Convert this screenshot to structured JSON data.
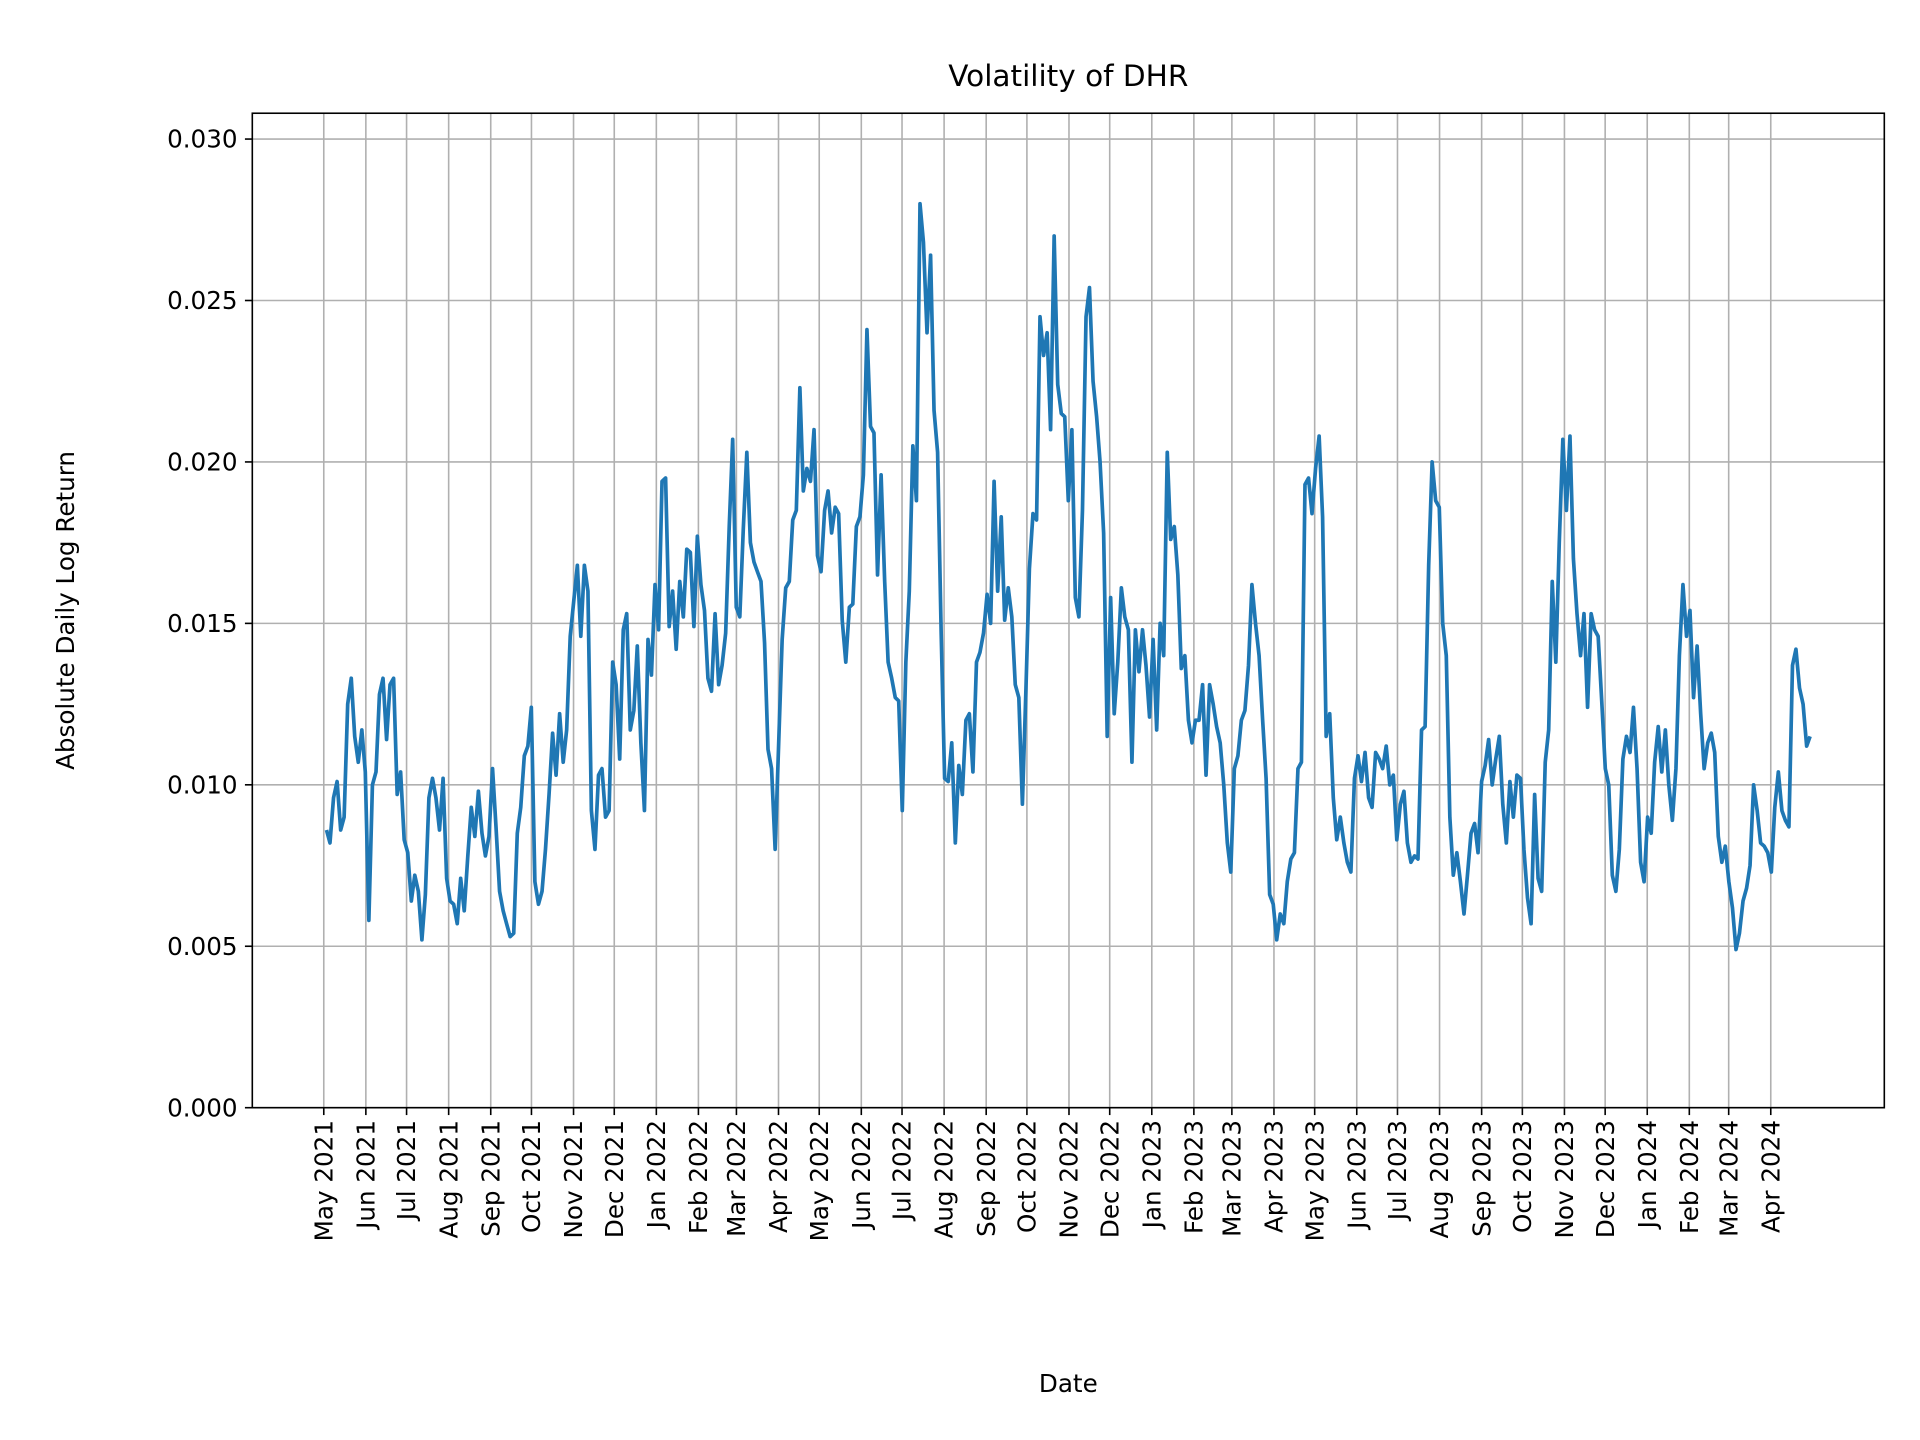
{
  "chart_data": {
    "type": "line",
    "title": "Volatility of DHR",
    "xlabel": "Date",
    "ylabel": "Absolute Daily Log Return",
    "ylim": [
      0,
      0.0308
    ],
    "yticks": [
      0.0,
      0.005,
      0.01,
      0.015,
      0.02,
      0.025,
      0.03
    ],
    "ytick_labels": [
      "0.000",
      "0.005",
      "0.010",
      "0.015",
      "0.020",
      "0.025",
      "0.030"
    ],
    "xticks": [
      "2021-05-01",
      "2021-06-01",
      "2021-07-01",
      "2021-08-01",
      "2021-09-01",
      "2021-10-01",
      "2021-11-01",
      "2021-12-01",
      "2022-01-01",
      "2022-02-01",
      "2022-03-01",
      "2022-04-01",
      "2022-05-01",
      "2022-06-01",
      "2022-07-01",
      "2022-08-01",
      "2022-09-01",
      "2022-10-01",
      "2022-11-01",
      "2022-12-01",
      "2023-01-01",
      "2023-02-01",
      "2023-03-01",
      "2023-04-01",
      "2023-05-01",
      "2023-06-01",
      "2023-07-01",
      "2023-08-01",
      "2023-09-01",
      "2023-10-01",
      "2023-11-01",
      "2023-12-01",
      "2024-01-01",
      "2024-02-01",
      "2024-03-01",
      "2024-04-01"
    ],
    "xtick_labels": [
      "May 2021",
      "Jun 2021",
      "Jul 2021",
      "Aug 2021",
      "Sep 2021",
      "Oct 2021",
      "Nov 2021",
      "Dec 2021",
      "Jan 2022",
      "Feb 2022",
      "Mar 2022",
      "Apr 2022",
      "May 2022",
      "Jun 2022",
      "Jul 2022",
      "Aug 2022",
      "Sep 2022",
      "Oct 2022",
      "Nov 2022",
      "Dec 2022",
      "Jan 2023",
      "Feb 2023",
      "Mar 2023",
      "Apr 2023",
      "May 2023",
      "Jun 2023",
      "Jul 2023",
      "Aug 2023",
      "Sep 2023",
      "Oct 2023",
      "Nov 2023",
      "Dec 2023",
      "Jan 2024",
      "Feb 2024",
      "Mar 2024",
      "Apr 2024"
    ],
    "grid": true,
    "line_color": "#1f77b4",
    "x_range": [
      "2021-05-03",
      "2024-04-30"
    ],
    "values": [
      0.0086,
      0.0082,
      0.0096,
      0.0101,
      0.0086,
      0.009,
      0.0125,
      0.0133,
      0.0115,
      0.0107,
      0.0117,
      0.0104,
      0.0058,
      0.01,
      0.0104,
      0.0128,
      0.0133,
      0.0114,
      0.0131,
      0.0133,
      0.0097,
      0.0104,
      0.0083,
      0.0079,
      0.0064,
      0.0072,
      0.0067,
      0.0052,
      0.0066,
      0.0096,
      0.0102,
      0.0096,
      0.0086,
      0.0102,
      0.0071,
      0.0064,
      0.0063,
      0.0057,
      0.0071,
      0.0061,
      0.0078,
      0.0093,
      0.0084,
      0.0098,
      0.0085,
      0.0078,
      0.0084,
      0.0105,
      0.0087,
      0.0067,
      0.0061,
      0.0057,
      0.0053,
      0.0054,
      0.0085,
      0.0093,
      0.0109,
      0.0112,
      0.0124,
      0.007,
      0.0063,
      0.0067,
      0.008,
      0.0097,
      0.0116,
      0.0103,
      0.0122,
      0.0107,
      0.0117,
      0.0146,
      0.0157,
      0.0168,
      0.0146,
      0.0168,
      0.016,
      0.0092,
      0.008,
      0.0103,
      0.0105,
      0.009,
      0.0092,
      0.0138,
      0.0131,
      0.0108,
      0.0148,
      0.0153,
      0.0117,
      0.0123,
      0.0143,
      0.0113,
      0.0092,
      0.0145,
      0.0134,
      0.0162,
      0.0148,
      0.0194,
      0.0195,
      0.0149,
      0.016,
      0.0142,
      0.0163,
      0.0152,
      0.0173,
      0.0172,
      0.0149,
      0.0177,
      0.0162,
      0.0154,
      0.0133,
      0.0129,
      0.0153,
      0.0131,
      0.0137,
      0.0147,
      0.018,
      0.0207,
      0.0155,
      0.0152,
      0.0179,
      0.0203,
      0.0175,
      0.0169,
      0.0166,
      0.0163,
      0.0144,
      0.0111,
      0.0105,
      0.008,
      0.0112,
      0.0145,
      0.0161,
      0.0163,
      0.0182,
      0.0185,
      0.0223,
      0.0191,
      0.0198,
      0.0194,
      0.021,
      0.0171,
      0.0166,
      0.0185,
      0.0191,
      0.0178,
      0.0186,
      0.0184,
      0.0151,
      0.0138,
      0.0155,
      0.0156,
      0.018,
      0.0183,
      0.0196,
      0.0241,
      0.0211,
      0.0209,
      0.0165,
      0.0196,
      0.0163,
      0.0138,
      0.0133,
      0.0127,
      0.0126,
      0.0092,
      0.0138,
      0.016,
      0.0205,
      0.0188,
      0.028,
      0.0268,
      0.024,
      0.0264,
      0.0216,
      0.0203,
      0.0147,
      0.0102,
      0.0101,
      0.0113,
      0.0082,
      0.0106,
      0.0097,
      0.012,
      0.0122,
      0.0104,
      0.0138,
      0.0141,
      0.0147,
      0.0159,
      0.015,
      0.0194,
      0.016,
      0.0183,
      0.0151,
      0.0161,
      0.0152,
      0.0131,
      0.0127,
      0.0094,
      0.013,
      0.0167,
      0.0184,
      0.0182,
      0.0245,
      0.0233,
      0.024,
      0.021,
      0.027,
      0.0224,
      0.0215,
      0.0214,
      0.0188,
      0.021,
      0.0158,
      0.0152,
      0.0185,
      0.0245,
      0.0254,
      0.0225,
      0.0214,
      0.02,
      0.0178,
      0.0115,
      0.0158,
      0.0122,
      0.0138,
      0.0161,
      0.0152,
      0.0148,
      0.0107,
      0.0148,
      0.0135,
      0.0148,
      0.0137,
      0.0121,
      0.0145,
      0.0117,
      0.015,
      0.014,
      0.0203,
      0.0176,
      0.018,
      0.0165,
      0.0136,
      0.014,
      0.012,
      0.0113,
      0.012,
      0.012,
      0.0131,
      0.0103,
      0.0131,
      0.0125,
      0.0118,
      0.0113,
      0.01,
      0.0082,
      0.0073,
      0.0105,
      0.0109,
      0.012,
      0.0123,
      0.0137,
      0.0162,
      0.015,
      0.014,
      0.012,
      0.0102,
      0.0066,
      0.0063,
      0.0052,
      0.006,
      0.0057,
      0.007,
      0.0077,
      0.0079,
      0.0105,
      0.0107,
      0.0193,
      0.0195,
      0.0184,
      0.0198,
      0.0208,
      0.0183,
      0.0115,
      0.0122,
      0.0096,
      0.0083,
      0.009,
      0.0082,
      0.0076,
      0.0073,
      0.0102,
      0.0109,
      0.0101,
      0.011,
      0.0096,
      0.0093,
      0.011,
      0.0108,
      0.0105,
      0.0112,
      0.01,
      0.0103,
      0.0083,
      0.0094,
      0.0098,
      0.0082,
      0.0076,
      0.0078,
      0.0077,
      0.0117,
      0.0118,
      0.0168,
      0.02,
      0.0188,
      0.0186,
      0.015,
      0.014,
      0.009,
      0.0072,
      0.0079,
      0.007,
      0.006,
      0.0072,
      0.0085,
      0.0088,
      0.0079,
      0.0101,
      0.0106,
      0.0114,
      0.01,
      0.0108,
      0.0115,
      0.0094,
      0.0082,
      0.0101,
      0.009,
      0.0103,
      0.0102,
      0.008,
      0.0065,
      0.0057,
      0.0097,
      0.0071,
      0.0067,
      0.0107,
      0.0117,
      0.0163,
      0.0138,
      0.0175,
      0.0207,
      0.0185,
      0.0208,
      0.017,
      0.0153,
      0.014,
      0.0153,
      0.0124,
      0.0153,
      0.0148,
      0.0146,
      0.0126,
      0.0105,
      0.01,
      0.0072,
      0.0067,
      0.008,
      0.0108,
      0.0115,
      0.011,
      0.0124,
      0.0105,
      0.0076,
      0.007,
      0.009,
      0.0085,
      0.0107,
      0.0118,
      0.0104,
      0.0117,
      0.01,
      0.0089,
      0.0105,
      0.014,
      0.0162,
      0.0146,
      0.0154,
      0.0127,
      0.0143,
      0.0122,
      0.0105,
      0.0113,
      0.0116,
      0.011,
      0.0084,
      0.0076,
      0.0081,
      0.007,
      0.0062,
      0.0049,
      0.0054,
      0.0064,
      0.0068,
      0.0075,
      0.01,
      0.0092,
      0.0082,
      0.0081,
      0.0079,
      0.0073,
      0.0093,
      0.0104,
      0.0092,
      0.0089,
      0.0087,
      0.0137,
      0.0142,
      0.013,
      0.0125,
      0.0112,
      0.0115
    ]
  }
}
